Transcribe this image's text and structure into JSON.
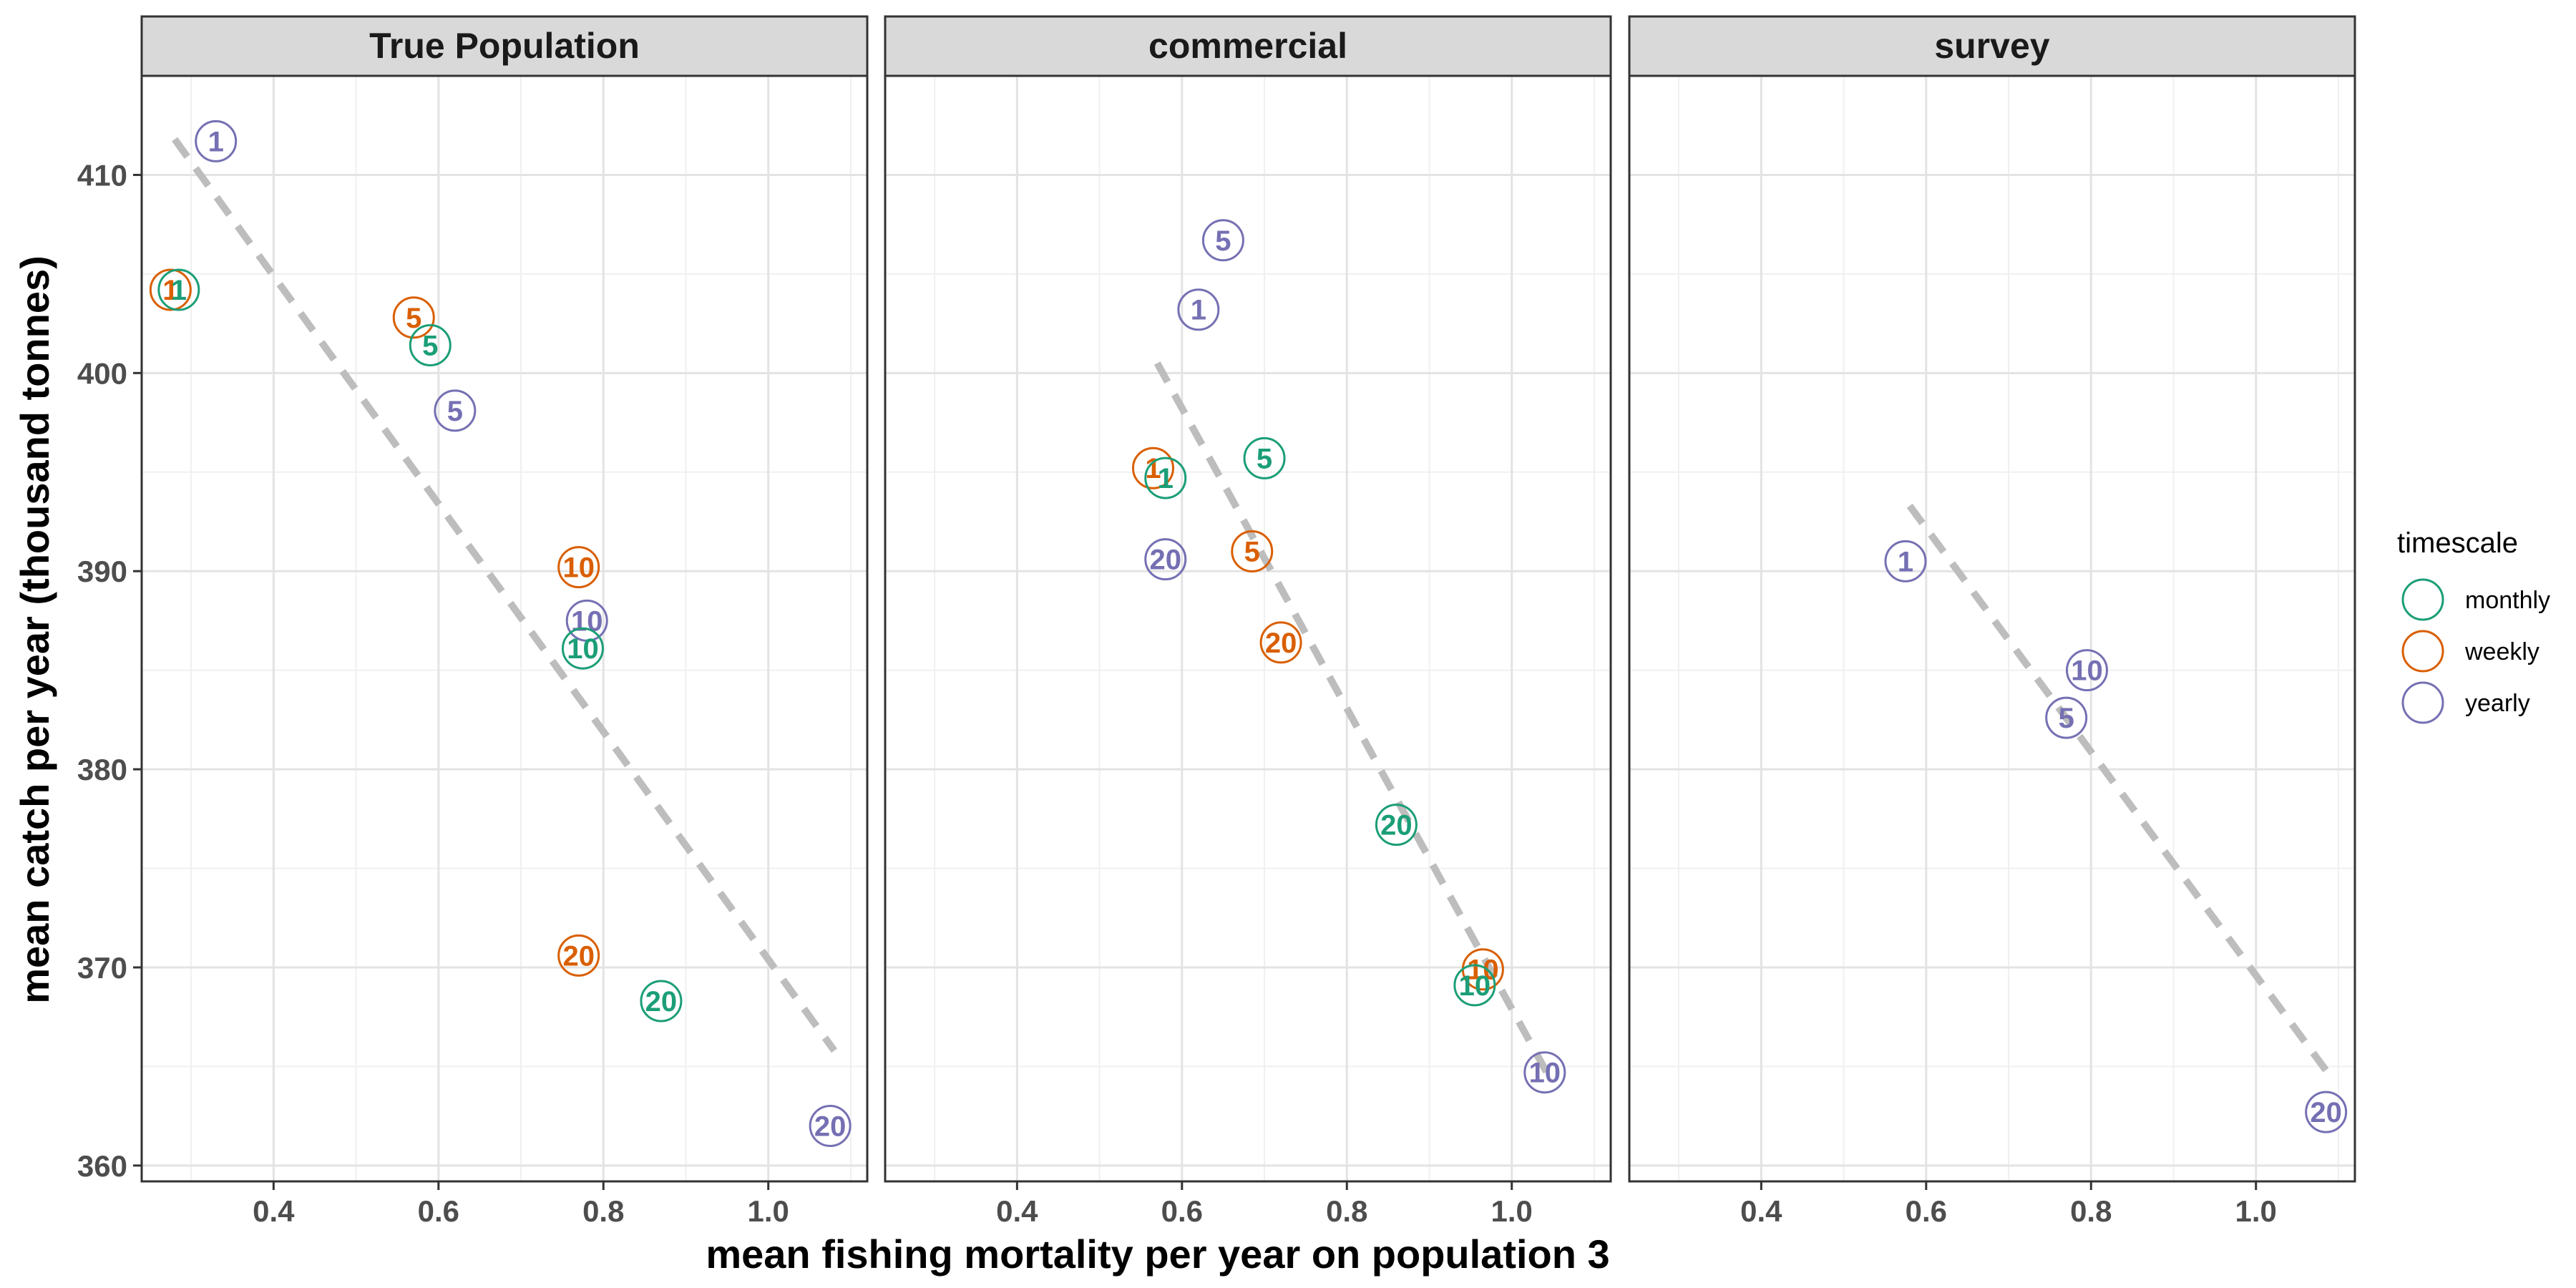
{
  "chart_data": {
    "type": "scatter",
    "xlabel": "mean fishing mortality per year on population 3",
    "ylabel": "mean catch per year (thousand tonnes)",
    "xlim": [
      0.24,
      1.12
    ],
    "ylim": [
      359.2,
      415.0
    ],
    "x_ticks": [
      0.4,
      0.6,
      0.8,
      1.0
    ],
    "x_tick_labels": [
      "0.4",
      "0.6",
      "0.8",
      "1.0"
    ],
    "y_ticks": [
      360,
      370,
      380,
      390,
      400,
      410
    ],
    "y_tick_labels": [
      "360",
      "370",
      "380",
      "390",
      "400",
      "410"
    ],
    "grid": true,
    "legend": {
      "title": "timescale",
      "placement": "right",
      "entries": [
        {
          "label": "monthly",
          "color": "#1b9e77"
        },
        {
          "label": "weekly",
          "color": "#d95f02"
        },
        {
          "label": "yearly",
          "color": "#7570b3"
        }
      ]
    },
    "trend_line_color": "#bdbdbd",
    "panels": [
      {
        "title": "True Population",
        "trend": {
          "x": [
            0.28,
            1.08
          ],
          "y": [
            411.8,
            365.8
          ]
        },
        "points": [
          {
            "series": "yearly",
            "label": "1",
            "x": 0.33,
            "y": 411.7
          },
          {
            "series": "weekly",
            "label": "1",
            "x": 0.275,
            "y": 404.2
          },
          {
            "series": "monthly",
            "label": "1",
            "x": 0.285,
            "y": 404.2
          },
          {
            "series": "weekly",
            "label": "5",
            "x": 0.57,
            "y": 402.8
          },
          {
            "series": "monthly",
            "label": "5",
            "x": 0.59,
            "y": 401.4
          },
          {
            "series": "yearly",
            "label": "5",
            "x": 0.62,
            "y": 398.1
          },
          {
            "series": "weekly",
            "label": "10",
            "x": 0.77,
            "y": 390.2
          },
          {
            "series": "yearly",
            "label": "10",
            "x": 0.78,
            "y": 387.5
          },
          {
            "series": "monthly",
            "label": "10",
            "x": 0.775,
            "y": 386.1
          },
          {
            "series": "weekly",
            "label": "20",
            "x": 0.77,
            "y": 370.6
          },
          {
            "series": "monthly",
            "label": "20",
            "x": 0.87,
            "y": 368.3
          },
          {
            "series": "yearly",
            "label": "20",
            "x": 1.075,
            "y": 362.0
          }
        ]
      },
      {
        "title": "commercial",
        "trend": {
          "x": [
            0.57,
            1.045
          ],
          "y": [
            400.5,
            364.5
          ]
        },
        "points": [
          {
            "series": "yearly",
            "label": "5",
            "x": 0.65,
            "y": 406.7
          },
          {
            "series": "yearly",
            "label": "1",
            "x": 0.62,
            "y": 403.2
          },
          {
            "series": "monthly",
            "label": "5",
            "x": 0.7,
            "y": 395.7
          },
          {
            "series": "weekly",
            "label": "1",
            "x": 0.565,
            "y": 395.2
          },
          {
            "series": "monthly",
            "label": "1",
            "x": 0.58,
            "y": 394.7
          },
          {
            "series": "weekly",
            "label": "5",
            "x": 0.685,
            "y": 391.0
          },
          {
            "series": "yearly",
            "label": "20",
            "x": 0.58,
            "y": 390.6
          },
          {
            "series": "weekly",
            "label": "20",
            "x": 0.72,
            "y": 386.4
          },
          {
            "series": "monthly",
            "label": "20",
            "x": 0.86,
            "y": 377.2
          },
          {
            "series": "weekly",
            "label": "10",
            "x": 0.965,
            "y": 369.9
          },
          {
            "series": "monthly",
            "label": "10",
            "x": 0.955,
            "y": 369.1
          },
          {
            "series": "yearly",
            "label": "10",
            "x": 1.04,
            "y": 364.7
          }
        ]
      },
      {
        "title": "survey",
        "trend": {
          "x": [
            0.58,
            1.085
          ],
          "y": [
            393.3,
            364.8
          ]
        },
        "points": [
          {
            "series": "yearly",
            "label": "1",
            "x": 0.575,
            "y": 390.5
          },
          {
            "series": "yearly",
            "label": "10",
            "x": 0.795,
            "y": 385.0
          },
          {
            "series": "yearly",
            "label": "5",
            "x": 0.77,
            "y": 382.6
          },
          {
            "series": "yearly",
            "label": "20",
            "x": 1.085,
            "y": 362.7
          }
        ]
      }
    ]
  }
}
